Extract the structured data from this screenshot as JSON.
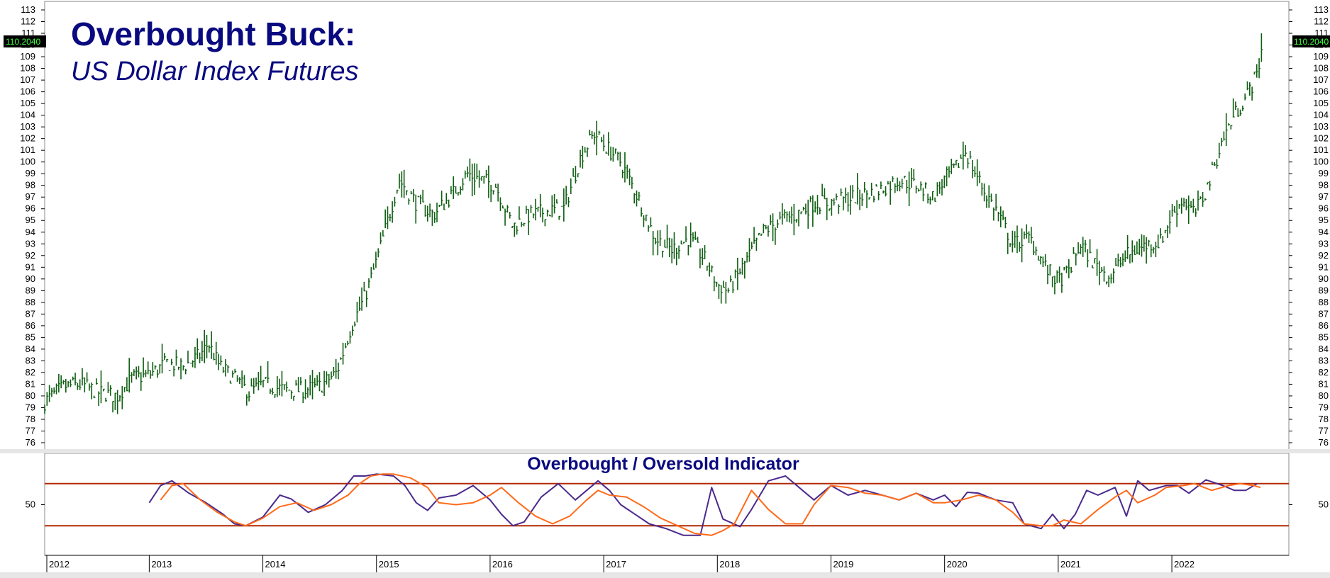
{
  "colors": {
    "price": "#0f5e12",
    "title": "#0a0a80",
    "oscillator": "#4b2a8c",
    "signal": "#ff6a1a",
    "bands": "#b22a00",
    "badge_bg": "#000000",
    "badge_text": "#3cff3c"
  },
  "chart_data": [
    {
      "type": "line",
      "style": "ohlc-bars",
      "title": "Overbought Buck:",
      "subtitle": "US Dollar Index Futures",
      "last_value_label": "110.2040",
      "xlabel": "",
      "ylabel": "",
      "ylim": [
        76,
        113
      ],
      "yticks": [
        76,
        77,
        78,
        79,
        80,
        81,
        82,
        83,
        84,
        85,
        86,
        87,
        88,
        89,
        90,
        91,
        92,
        93,
        94,
        95,
        96,
        97,
        98,
        99,
        100,
        101,
        102,
        103,
        104,
        105,
        106,
        107,
        108,
        109,
        110,
        111,
        112,
        113
      ],
      "xlim": [
        2012.08,
        2022.83
      ],
      "x_tick_labels": [
        "2012",
        "2013",
        "2014",
        "2015",
        "2016",
        "2017",
        "2018",
        "2019",
        "2020",
        "2021",
        "2022"
      ],
      "x_tick_positions": [
        2012.0,
        2013.0,
        2014.0,
        2015.0,
        2016.0,
        2017.0,
        2018.0,
        2019.0,
        2020.0,
        2021.0,
        2022.0
      ],
      "grid": false,
      "series": [
        {
          "x": [
            2012.08,
            2012.25,
            2012.4,
            2012.55,
            2012.72,
            2012.85,
            2013.0,
            2013.15,
            2013.3,
            2013.45,
            2013.52,
            2013.62,
            2013.75,
            2013.88,
            2014.0,
            2014.2,
            2014.35,
            2014.5,
            2014.65,
            2014.78,
            2014.9,
            2015.0,
            2015.1,
            2015.2,
            2015.35,
            2015.5,
            2015.65,
            2015.8,
            2015.92,
            2016.05,
            2016.2,
            2016.35,
            2016.5,
            2016.65,
            2016.8,
            2016.92,
            2017.0,
            2017.15,
            2017.3,
            2017.45,
            2017.6,
            2017.75,
            2017.9,
            2018.0,
            2018.1,
            2018.25,
            2018.4,
            2018.55,
            2018.7,
            2018.85,
            2019.0,
            2019.2,
            2019.4,
            2019.6,
            2019.75,
            2019.9,
            2020.0,
            2020.1,
            2020.18,
            2020.25,
            2020.35,
            2020.45,
            2020.6,
            2020.75,
            2020.9,
            2021.0,
            2021.1,
            2021.2,
            2021.3,
            2021.45,
            2021.6,
            2021.75,
            2021.9,
            2022.0,
            2022.1,
            2022.2,
            2022.3,
            2022.45,
            2022.55,
            2022.65,
            2022.75,
            2022.8
          ],
          "close": [
            79.5,
            80.8,
            81.0,
            80.3,
            80.0,
            81.5,
            81.8,
            82.8,
            82.5,
            83.5,
            84.5,
            82.5,
            81.5,
            80.3,
            81.0,
            80.5,
            80.5,
            80.8,
            82.0,
            86.0,
            88.5,
            91.5,
            95.0,
            98.5,
            96.5,
            95.5,
            97.0,
            99.0,
            98.5,
            98.0,
            94.5,
            95.5,
            95.8,
            96.0,
            100.5,
            102.5,
            101.5,
            100.0,
            97.0,
            93.5,
            92.5,
            93.5,
            91.5,
            89.5,
            89.0,
            91.5,
            94.0,
            95.0,
            95.5,
            96.5,
            96.5,
            97.0,
            97.5,
            98.5,
            98.0,
            97.0,
            98.5,
            99.5,
            101.0,
            99.5,
            97.5,
            96.0,
            93.0,
            93.5,
            90.8,
            89.8,
            90.8,
            93.0,
            91.5,
            90.2,
            92.0,
            92.8,
            93.2,
            95.5,
            96.8,
            95.5,
            97.5,
            102.0,
            104.0,
            105.5,
            107.5,
            110.2
          ],
          "name": ""
        }
      ]
    },
    {
      "type": "line",
      "title": "Overbought / Oversold Indicator",
      "ylim": [
        0,
        100
      ],
      "yticks": [
        50
      ],
      "bands": [
        72,
        28
      ],
      "xlim": [
        2012.08,
        2022.83
      ],
      "series": [
        {
          "x": [
            2013.0,
            2013.1,
            2013.2,
            2013.35,
            2013.5,
            2013.65,
            2013.75,
            2013.85,
            2014.0,
            2014.15,
            2014.25,
            2014.4,
            2014.55,
            2014.7,
            2014.8,
            2014.9,
            2015.0,
            2015.15,
            2015.25,
            2015.35,
            2015.45,
            2015.55,
            2015.7,
            2015.85,
            2016.0,
            2016.1,
            2016.2,
            2016.3,
            2016.45,
            2016.6,
            2016.75,
            2016.85,
            2016.95,
            2017.05,
            2017.15,
            2017.25,
            2017.4,
            2017.55,
            2017.7,
            2017.85,
            2017.95,
            2018.05,
            2018.2,
            2018.3,
            2018.45,
            2018.6,
            2018.75,
            2018.85,
            2019.0,
            2019.15,
            2019.3,
            2019.45,
            2019.6,
            2019.75,
            2019.9,
            2020.0,
            2020.1,
            2020.2,
            2020.3,
            2020.45,
            2020.6,
            2020.7,
            2020.85,
            2020.95,
            2021.05,
            2021.15,
            2021.25,
            2021.35,
            2021.5,
            2021.6,
            2021.7,
            2021.8,
            2021.95,
            2022.05,
            2022.15,
            2022.3,
            2022.45,
            2022.55,
            2022.65,
            2022.75
          ],
          "y": [
            52,
            70,
            75,
            62,
            52,
            40,
            30,
            28,
            37,
            60,
            56,
            42,
            50,
            65,
            80,
            80,
            82,
            80,
            70,
            52,
            44,
            57,
            60,
            70,
            55,
            40,
            28,
            32,
            58,
            72,
            55,
            65,
            75,
            65,
            50,
            42,
            30,
            25,
            18,
            18,
            68,
            35,
            27,
            45,
            75,
            80,
            65,
            55,
            70,
            60,
            65,
            60,
            55,
            62,
            55,
            60,
            48,
            63,
            62,
            55,
            52,
            30,
            25,
            40,
            25,
            40,
            65,
            60,
            68,
            38,
            75,
            65,
            70,
            70,
            62,
            76,
            70,
            65,
            65,
            72
          ],
          "name": ""
        },
        {
          "x": [
            2013.1,
            2013.2,
            2013.3,
            2013.45,
            2013.6,
            2013.75,
            2013.85,
            2014.0,
            2014.15,
            2014.3,
            2014.45,
            2014.6,
            2014.75,
            2014.85,
            2014.95,
            2015.05,
            2015.15,
            2015.3,
            2015.45,
            2015.55,
            2015.7,
            2015.85,
            2016.0,
            2016.1,
            2016.25,
            2016.4,
            2016.55,
            2016.7,
            2016.85,
            2016.95,
            2017.05,
            2017.2,
            2017.35,
            2017.5,
            2017.65,
            2017.8,
            2017.95,
            2018.05,
            2018.15,
            2018.3,
            2018.45,
            2018.6,
            2018.75,
            2018.85,
            2019.0,
            2019.15,
            2019.3,
            2019.45,
            2019.6,
            2019.75,
            2019.9,
            2020.0,
            2020.15,
            2020.3,
            2020.45,
            2020.6,
            2020.7,
            2020.85,
            2020.95,
            2021.05,
            2021.2,
            2021.35,
            2021.5,
            2021.6,
            2021.7,
            2021.85,
            2021.95,
            2022.1,
            2022.2,
            2022.35,
            2022.5,
            2022.6,
            2022.72,
            2022.78
          ],
          "y": [
            55,
            70,
            72,
            55,
            42,
            32,
            28,
            36,
            48,
            52,
            44,
            50,
            60,
            72,
            80,
            82,
            82,
            78,
            68,
            52,
            50,
            52,
            60,
            68,
            52,
            38,
            30,
            38,
            55,
            65,
            60,
            58,
            48,
            36,
            28,
            20,
            18,
            23,
            30,
            65,
            45,
            30,
            30,
            50,
            70,
            68,
            62,
            60,
            55,
            62,
            52,
            52,
            55,
            60,
            55,
            42,
            30,
            28,
            28,
            34,
            30,
            45,
            58,
            65,
            52,
            60,
            68,
            70,
            72,
            65,
            70,
            72,
            70,
            68
          ],
          "name": ""
        }
      ]
    }
  ]
}
